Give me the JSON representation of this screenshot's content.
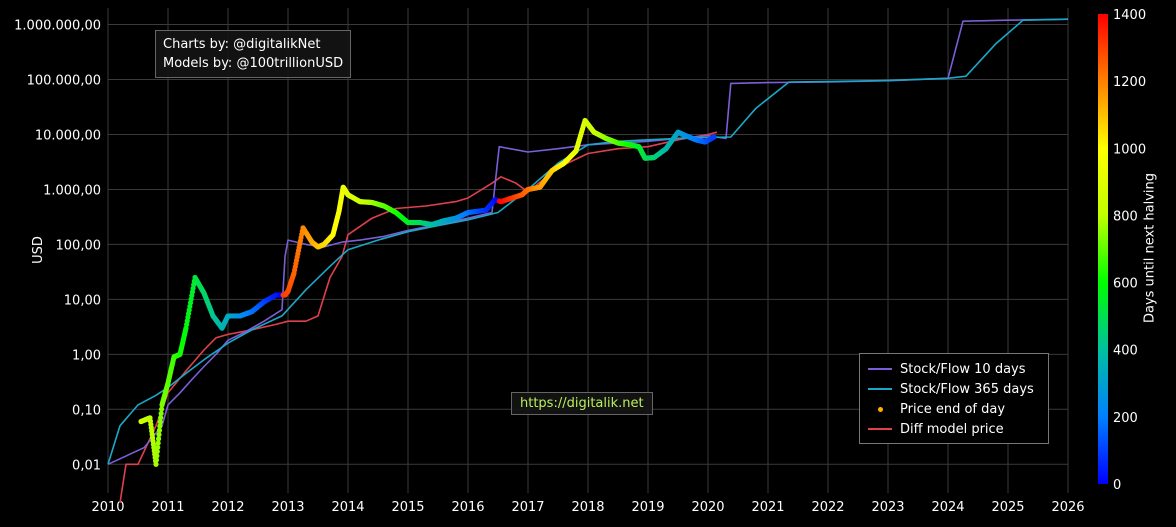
{
  "credits": {
    "line1": "Charts by: @digitalikNet",
    "line2": "Models by: @100trillionUSD"
  },
  "url_label": "https://digitalik.net",
  "colors": {
    "background": "#000000",
    "grid": "#3a3a3a",
    "stock_flow_10d": "#7b5fd6",
    "stock_flow_365d": "#1ba8c8",
    "diff_model": "#e0404c",
    "price_dot_legend": "#ffb000"
  },
  "chart_data": {
    "type": "scatter",
    "ylabel": "USD",
    "xlabel": "",
    "yscale": "log",
    "ylim": [
      0.003,
      2000000
    ],
    "xlim": [
      2010,
      2026
    ],
    "grid": true,
    "legend_position": "bottom-right",
    "x_ticks": [
      "2010",
      "2011",
      "2012",
      "2013",
      "2014",
      "2015",
      "2016",
      "2017",
      "2018",
      "2019",
      "2020",
      "2021",
      "2022",
      "2023",
      "2024",
      "2025",
      "2026"
    ],
    "y_ticks": [
      {
        "value": 1000000,
        "label": "1.000.000,00"
      },
      {
        "value": 100000,
        "label": "100.000,00"
      },
      {
        "value": 10000,
        "label": "10.000,00"
      },
      {
        "value": 1000,
        "label": "1.000,00"
      },
      {
        "value": 100,
        "label": "100,00"
      },
      {
        "value": 10,
        "label": "10,00"
      },
      {
        "value": 1,
        "label": "1,00"
      },
      {
        "value": 0.1,
        "label": "0,10"
      },
      {
        "value": 0.01,
        "label": "0,01"
      }
    ],
    "colorbar": {
      "title": "Days until next halving",
      "min": 0,
      "max": 1400,
      "ticks": [
        "0",
        "200",
        "400",
        "600",
        "800",
        "1000",
        "1200",
        "1400"
      ],
      "colorscale": [
        "#0000ff",
        "#0080ff",
        "#00c0a0",
        "#00ff00",
        "#c0ff00",
        "#ffff00",
        "#ff8000",
        "#ff0000"
      ]
    },
    "series": [
      {
        "name": "Stock/Flow 10 days",
        "kind": "line",
        "points": [
          [
            2010.0,
            0.01
          ],
          [
            2010.6,
            0.02
          ],
          [
            2010.9,
            0.05
          ],
          [
            2011.0,
            0.12
          ],
          [
            2011.2,
            0.2
          ],
          [
            2011.4,
            0.35
          ],
          [
            2011.6,
            0.6
          ],
          [
            2011.8,
            1.0
          ],
          [
            2012.0,
            1.8
          ],
          [
            2012.3,
            2.6
          ],
          [
            2012.6,
            4
          ],
          [
            2012.9,
            6.5
          ],
          [
            2012.95,
            60
          ],
          [
            2013.0,
            120
          ],
          [
            2013.3,
            100
          ],
          [
            2013.6,
            90
          ],
          [
            2013.9,
            110
          ],
          [
            2014.2,
            120
          ],
          [
            2014.6,
            140
          ],
          [
            2015.0,
            180
          ],
          [
            2015.5,
            230
          ],
          [
            2016.0,
            300
          ],
          [
            2016.4,
            380
          ],
          [
            2016.52,
            6000
          ],
          [
            2016.7,
            5500
          ],
          [
            2017.0,
            4800
          ],
          [
            2017.5,
            5500
          ],
          [
            2018.0,
            6500
          ],
          [
            2018.5,
            7000
          ],
          [
            2019.0,
            7500
          ],
          [
            2019.5,
            8500
          ],
          [
            2020.0,
            9500
          ],
          [
            2020.3,
            8500
          ],
          [
            2020.38,
            85000
          ],
          [
            2021.0,
            88000
          ],
          [
            2022.0,
            90000
          ],
          [
            2023.0,
            95000
          ],
          [
            2024.0,
            105000
          ],
          [
            2024.25,
            1150000
          ],
          [
            2025.0,
            1200000
          ],
          [
            2026.0,
            1250000
          ]
        ]
      },
      {
        "name": "Stock/Flow 365 days",
        "kind": "line",
        "points": [
          [
            2010.0,
            0.01
          ],
          [
            2010.2,
            0.05
          ],
          [
            2010.5,
            0.12
          ],
          [
            2010.8,
            0.18
          ],
          [
            2011.0,
            0.25
          ],
          [
            2011.3,
            0.45
          ],
          [
            2011.6,
            0.8
          ],
          [
            2012.0,
            1.6
          ],
          [
            2012.4,
            2.8
          ],
          [
            2012.9,
            5
          ],
          [
            2013.3,
            15
          ],
          [
            2013.7,
            40
          ],
          [
            2014.0,
            80
          ],
          [
            2014.5,
            120
          ],
          [
            2015.0,
            170
          ],
          [
            2015.5,
            220
          ],
          [
            2016.0,
            280
          ],
          [
            2016.5,
            380
          ],
          [
            2017.0,
            1000
          ],
          [
            2017.5,
            3000
          ],
          [
            2018.0,
            6500
          ],
          [
            2018.5,
            7500
          ],
          [
            2019.0,
            8000
          ],
          [
            2019.5,
            8500
          ],
          [
            2020.0,
            8800
          ],
          [
            2020.38,
            9000
          ],
          [
            2020.8,
            30000
          ],
          [
            2021.35,
            90000
          ],
          [
            2022.0,
            92000
          ],
          [
            2023.0,
            96000
          ],
          [
            2024.0,
            105000
          ],
          [
            2024.3,
            115000
          ],
          [
            2024.8,
            450000
          ],
          [
            2025.25,
            1200000
          ],
          [
            2026.0,
            1250000
          ]
        ]
      },
      {
        "name": "Price end of day",
        "kind": "points",
        "points": [
          [
            2010.55,
            0.06
          ],
          [
            2010.7,
            0.07
          ],
          [
            2010.8,
            0.01
          ],
          [
            2010.9,
            0.12
          ],
          [
            2011.0,
            0.3
          ],
          [
            2011.1,
            0.9
          ],
          [
            2011.2,
            1.0
          ],
          [
            2011.3,
            3
          ],
          [
            2011.45,
            25
          ],
          [
            2011.6,
            13
          ],
          [
            2011.75,
            5
          ],
          [
            2011.9,
            3
          ],
          [
            2012.0,
            5
          ],
          [
            2012.2,
            5
          ],
          [
            2012.4,
            6
          ],
          [
            2012.6,
            9
          ],
          [
            2012.8,
            12
          ],
          [
            2012.95,
            12
          ],
          [
            2013.0,
            14
          ],
          [
            2013.1,
            30
          ],
          [
            2013.25,
            200
          ],
          [
            2013.4,
            110
          ],
          [
            2013.5,
            90
          ],
          [
            2013.6,
            100
          ],
          [
            2013.75,
            150
          ],
          [
            2013.85,
            400
          ],
          [
            2013.92,
            1100
          ],
          [
            2014.0,
            800
          ],
          [
            2014.2,
            600
          ],
          [
            2014.4,
            580
          ],
          [
            2014.6,
            500
          ],
          [
            2014.8,
            380
          ],
          [
            2015.0,
            250
          ],
          [
            2015.2,
            250
          ],
          [
            2015.4,
            230
          ],
          [
            2015.6,
            270
          ],
          [
            2015.8,
            300
          ],
          [
            2016.0,
            380
          ],
          [
            2016.3,
            420
          ],
          [
            2016.45,
            650
          ],
          [
            2016.55,
            600
          ],
          [
            2016.7,
            680
          ],
          [
            2016.9,
            800
          ],
          [
            2017.0,
            1000
          ],
          [
            2017.2,
            1100
          ],
          [
            2017.4,
            2200
          ],
          [
            2017.6,
            3000
          ],
          [
            2017.8,
            5000
          ],
          [
            2017.95,
            18000
          ],
          [
            2018.1,
            11000
          ],
          [
            2018.3,
            8500
          ],
          [
            2018.5,
            7000
          ],
          [
            2018.7,
            6500
          ],
          [
            2018.85,
            6000
          ],
          [
            2018.95,
            3700
          ],
          [
            2019.1,
            3800
          ],
          [
            2019.3,
            5500
          ],
          [
            2019.5,
            11000
          ],
          [
            2019.6,
            9800
          ],
          [
            2019.8,
            8000
          ],
          [
            2019.95,
            7300
          ],
          [
            2020.1,
            9000
          ]
        ]
      },
      {
        "name": "Diff model price",
        "kind": "line",
        "points": [
          [
            2010.2,
            0.002
          ],
          [
            2010.3,
            0.01
          ],
          [
            2010.5,
            0.01
          ],
          [
            2010.8,
            0.05
          ],
          [
            2011.0,
            0.2
          ],
          [
            2011.3,
            0.5
          ],
          [
            2011.6,
            1.2
          ],
          [
            2011.8,
            2
          ],
          [
            2012.0,
            2.3
          ],
          [
            2012.4,
            2.8
          ],
          [
            2012.8,
            3.5
          ],
          [
            2013.0,
            4
          ],
          [
            2013.3,
            4
          ],
          [
            2013.5,
            5
          ],
          [
            2013.7,
            25
          ],
          [
            2013.9,
            60
          ],
          [
            2014.0,
            150
          ],
          [
            2014.4,
            300
          ],
          [
            2014.8,
            450
          ],
          [
            2015.3,
            500
          ],
          [
            2015.8,
            600
          ],
          [
            2016.0,
            700
          ],
          [
            2016.4,
            1300
          ],
          [
            2016.55,
            1700
          ],
          [
            2016.8,
            1300
          ],
          [
            2017.0,
            900
          ],
          [
            2017.5,
            2500
          ],
          [
            2018.0,
            4500
          ],
          [
            2018.5,
            5500
          ],
          [
            2019.0,
            6000
          ],
          [
            2019.5,
            8000
          ],
          [
            2020.0,
            10000
          ],
          [
            2020.15,
            11000
          ]
        ]
      }
    ]
  }
}
